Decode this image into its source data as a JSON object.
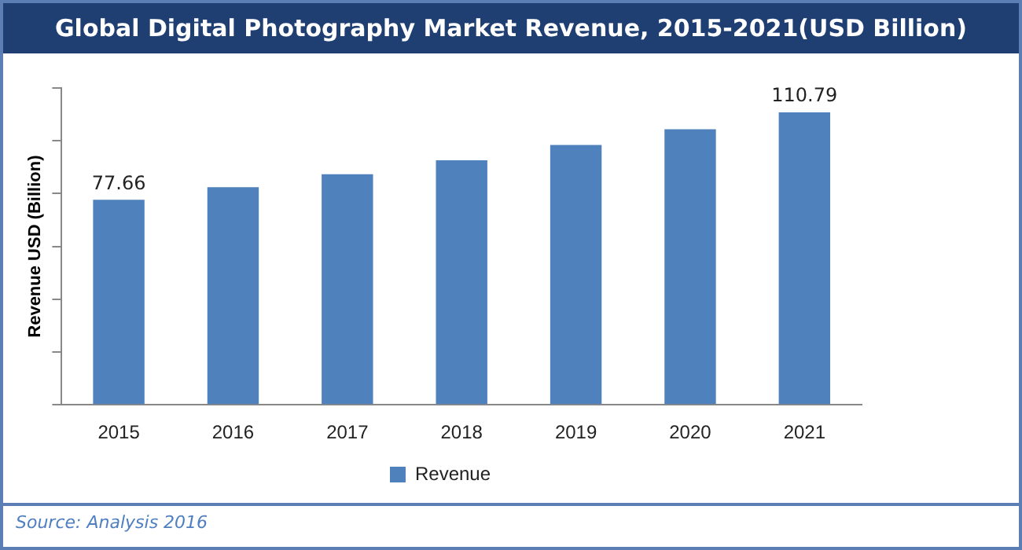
{
  "chart_data": {
    "type": "bar",
    "title": "Global Digital Photography Market Revenue, 2015-2021(USD Billion)",
    "ylabel": "Revenue USD (Billion)",
    "categories": [
      "2015",
      "2016",
      "2017",
      "2018",
      "2019",
      "2020",
      "2021"
    ],
    "series": [
      {
        "name": "Revenue",
        "color": "#4f81bd",
        "values": [
          77.66,
          82.4,
          87.3,
          92.6,
          98.4,
          104.4,
          110.79
        ],
        "value_labels": [
          "77.66",
          null,
          null,
          null,
          null,
          null,
          "110.79"
        ]
      }
    ],
    "ylim": [
      0,
      120
    ],
    "yticks": [
      {
        "value": 0,
        "label": null
      },
      {
        "value": 20,
        "label": null
      },
      {
        "value": 40,
        "label": null
      },
      {
        "value": 60,
        "label": null
      },
      {
        "value": 80,
        "label": null
      },
      {
        "value": 100,
        "label": null
      },
      {
        "value": 120,
        "label": null
      }
    ],
    "tick_labels": "x",
    "grid": false,
    "legend": "bottom",
    "annotations": [
      "Source: Analysis 2016"
    ]
  }
}
